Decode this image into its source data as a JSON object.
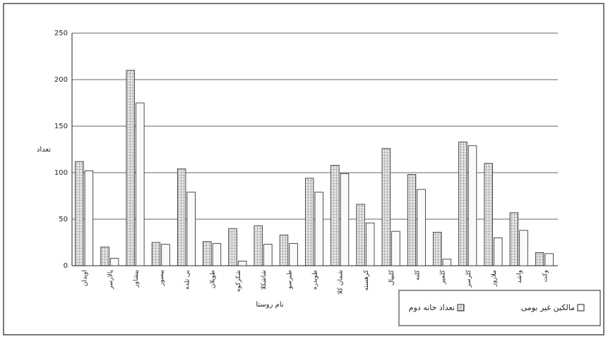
{
  "chart_data": {
    "type": "bar",
    "y_label": "تعداد",
    "x_label": "نام روستا",
    "categories": [
      "اویدان",
      "پالارسر",
      "پیشاور",
      "پیسور",
      "بی تلده",
      "طویلان",
      "شکرکوه",
      "شاشکلا",
      "طبرسو",
      "طویدره",
      "شمان کلا",
      "کرهسته",
      "کلیپال",
      "کلنه",
      "کلمیر",
      "کلرسر",
      "ملاروز",
      "واشد",
      "وکت"
    ],
    "series": [
      {
        "name": "تعداد خانه دوم",
        "color": "#e6e6e6",
        "values": [
          112,
          20,
          210,
          25,
          104,
          26,
          40,
          43,
          33,
          94,
          108,
          66,
          126,
          98,
          36,
          133,
          110,
          57,
          14
        ]
      },
      {
        "name": "مالکین غیر بومی",
        "color": "#fafafa",
        "values": [
          102,
          8,
          175,
          23,
          79,
          24,
          5,
          23,
          24,
          79,
          99,
          46,
          37,
          82,
          7,
          129,
          30,
          38,
          13
        ]
      }
    ],
    "ylim": [
      0,
      250
    ],
    "yticks": [
      0,
      50,
      100,
      150,
      200,
      250
    ],
    "grid": true
  }
}
